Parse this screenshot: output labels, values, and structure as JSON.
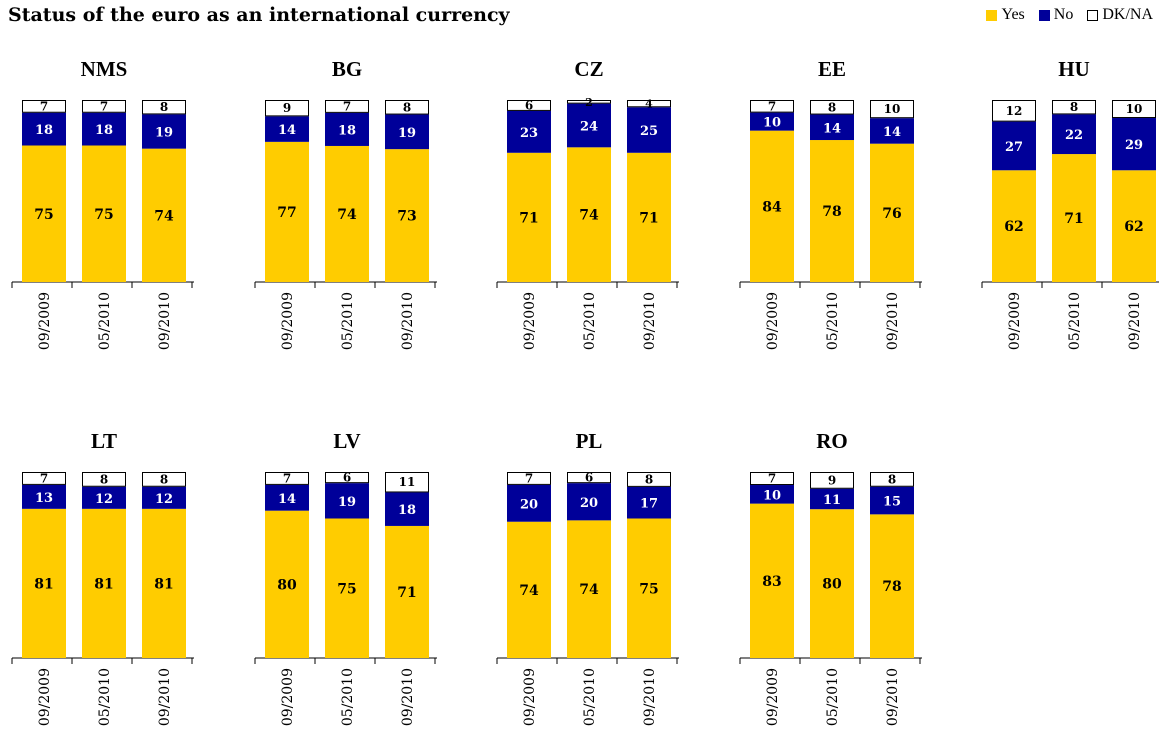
{
  "title": "Status of the euro as an international currency",
  "legend": {
    "yes": "Yes",
    "no": "No",
    "dkna": "DK/NA"
  },
  "colors": {
    "yes": "#FFCC00",
    "no": "#000099",
    "dkna": "#FFFFFF"
  },
  "chart_data": {
    "type": "bar",
    "stacked": true,
    "title": "Status of the euro as an international currency",
    "series_names": [
      "Yes",
      "No",
      "DK/NA"
    ],
    "legend_position": "top-right",
    "ylim": [
      0,
      100
    ],
    "grid": false,
    "panels": [
      {
        "label": "NMS",
        "categories": [
          "09/2009",
          "05/2010",
          "09/2010"
        ],
        "yes": [
          75,
          75,
          74
        ],
        "no": [
          18,
          18,
          19
        ],
        "dkna": [
          7,
          7,
          8
        ]
      },
      {
        "label": "BG",
        "categories": [
          "09/2009",
          "05/2010",
          "09/2010"
        ],
        "yes": [
          77,
          74,
          73
        ],
        "no": [
          14,
          18,
          19
        ],
        "dkna": [
          9,
          7,
          8
        ]
      },
      {
        "label": "CZ",
        "categories": [
          "09/2009",
          "05/2010",
          "09/2010"
        ],
        "yes": [
          71,
          74,
          71
        ],
        "no": [
          23,
          24,
          25
        ],
        "dkna": [
          6,
          2,
          4
        ]
      },
      {
        "label": "EE",
        "categories": [
          "09/2009",
          "05/2010",
          "09/2010"
        ],
        "yes": [
          84,
          78,
          76
        ],
        "no": [
          10,
          14,
          14
        ],
        "dkna": [
          7,
          8,
          10
        ]
      },
      {
        "label": "HU",
        "categories": [
          "09/2009",
          "05/2010",
          "09/2010"
        ],
        "yes": [
          62,
          71,
          62
        ],
        "no": [
          27,
          22,
          29
        ],
        "dkna": [
          12,
          8,
          10
        ]
      },
      {
        "label": "LT",
        "categories": [
          "09/2009",
          "05/2010",
          "09/2010"
        ],
        "yes": [
          81,
          81,
          81
        ],
        "no": [
          13,
          12,
          12
        ],
        "dkna": [
          7,
          8,
          8
        ]
      },
      {
        "label": "LV",
        "categories": [
          "09/2009",
          "05/2010",
          "09/2010"
        ],
        "yes": [
          80,
          75,
          71
        ],
        "no": [
          14,
          19,
          18
        ],
        "dkna": [
          7,
          6,
          11
        ]
      },
      {
        "label": "PL",
        "categories": [
          "09/2009",
          "05/2010",
          "09/2010"
        ],
        "yes": [
          74,
          74,
          75
        ],
        "no": [
          20,
          20,
          17
        ],
        "dkna": [
          7,
          6,
          8
        ]
      },
      {
        "label": "RO",
        "categories": [
          "09/2009",
          "05/2010",
          "09/2010"
        ],
        "yes": [
          83,
          80,
          78
        ],
        "no": [
          10,
          11,
          15
        ],
        "dkna": [
          7,
          9,
          8
        ]
      }
    ]
  }
}
